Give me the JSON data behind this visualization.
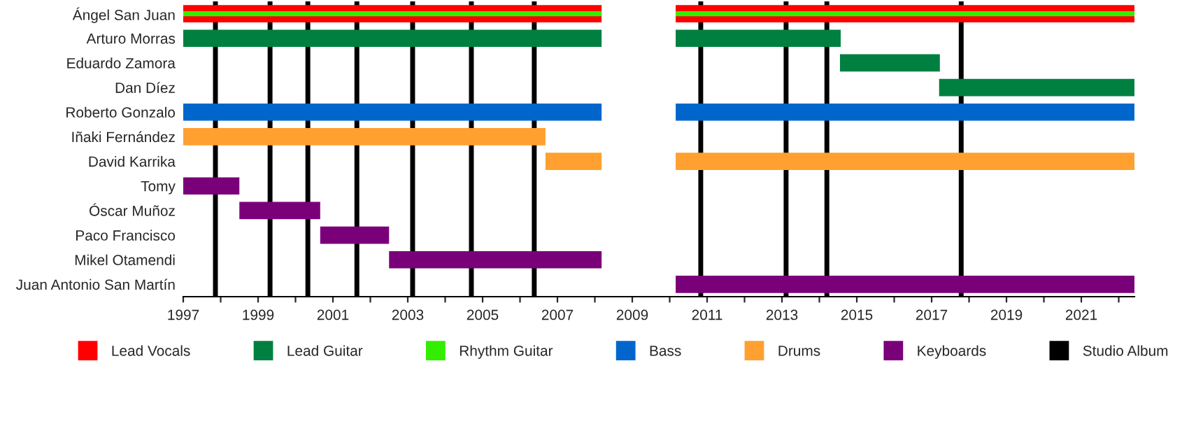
{
  "chart_data": {
    "type": "bar",
    "orientation": "horizontal",
    "legend": "bottom",
    "grid": false,
    "categories": [
      "Ángel San Juan",
      "Arturo Morras",
      "Eduardo Zamora",
      "Dan Díez",
      "Roberto Gonzalo",
      "Iñaki Fernández",
      "David Karrika",
      "Tomy",
      "Óscar Muñoz",
      "Paco Francisco",
      "Mikel Otamendi",
      "Juan Antonio San Martín"
    ],
    "xlim": [
      1997,
      2022.42
    ],
    "xticks": [
      1997,
      {
        "value": 1998,
        "label": null
      },
      1999,
      {
        "value": 2000,
        "label": null
      },
      2001,
      {
        "value": 2002,
        "label": null
      },
      2003,
      {
        "value": 2004,
        "label": null
      },
      2005,
      {
        "value": 2006,
        "label": null
      },
      2007,
      {
        "value": 2008,
        "label": null
      },
      2009,
      {
        "value": 2010,
        "label": null
      },
      2011,
      {
        "value": 2012,
        "label": null
      },
      2013,
      {
        "value": 2014,
        "label": null
      },
      2015,
      {
        "value": 2016,
        "label": null
      },
      2017,
      {
        "value": 2018,
        "label": null
      },
      2019,
      {
        "value": 2020,
        "label": null
      },
      2021,
      {
        "value": 2022,
        "label": null
      }
    ],
    "series": [
      {
        "name": "Lead Vocals",
        "color": "#ff0000",
        "base": [
          1997,
          null,
          null,
          null,
          null,
          null,
          null,
          null,
          null,
          null,
          null,
          null
        ],
        "values": [
          11.18,
          null,
          null,
          null,
          null,
          null,
          null,
          null,
          null,
          null,
          null,
          null
        ]
      },
      {
        "name": "Lead Guitar",
        "color": "#008040",
        "base": [
          null,
          1997,
          null,
          null,
          null,
          null,
          null,
          null,
          null,
          null,
          null,
          null
        ],
        "values": [
          null,
          11.18,
          null,
          null,
          null,
          null,
          null,
          null,
          null,
          null,
          null,
          null
        ]
      },
      {
        "name": "Rhythm Guitar",
        "color": "#33ee00",
        "base": [
          1997,
          null,
          null,
          null,
          null,
          null,
          null,
          null,
          null,
          null,
          null,
          null
        ],
        "values": [
          11.18,
          null,
          null,
          null,
          null,
          null,
          null,
          null,
          null,
          null,
          null,
          null
        ]
      },
      {
        "name": "Bass",
        "color": "#0066cc",
        "base": [
          null,
          null,
          null,
          null,
          1997,
          null,
          null,
          null,
          null,
          null,
          null,
          null
        ],
        "values": [
          null,
          null,
          null,
          null,
          11.18,
          null,
          null,
          null,
          null,
          null,
          null,
          null
        ]
      },
      {
        "name": "Drums",
        "color": "#ffa030",
        "base": [
          null,
          null,
          null,
          null,
          null,
          1997,
          2006.68,
          null,
          null,
          null,
          null,
          null
        ],
        "values": [
          null,
          null,
          null,
          null,
          null,
          9.68,
          1.5,
          null,
          null,
          null,
          null,
          null
        ]
      },
      {
        "name": "Keyboards",
        "color": "#7a007a",
        "base": [
          null,
          null,
          null,
          null,
          null,
          null,
          null,
          1997,
          1998.5,
          2000.66,
          2002.5,
          null
        ],
        "values": [
          null,
          null,
          null,
          null,
          null,
          null,
          null,
          1.5,
          2.16,
          1.84,
          5.68,
          null
        ]
      },
      {
        "color": "#ff0000",
        "base": [
          2010.16,
          null,
          null,
          null,
          null,
          null,
          null,
          null,
          null,
          null,
          null,
          null
        ],
        "values": [
          12.26,
          null,
          null,
          null,
          null,
          null,
          null,
          null,
          null,
          null,
          null,
          null
        ]
      },
      {
        "color": "#008040",
        "base": [
          null,
          2010.16,
          2014.55,
          2017.2,
          null,
          null,
          null,
          null,
          null,
          null,
          null,
          null
        ],
        "values": [
          null,
          4.41,
          2.67,
          5.22,
          null,
          null,
          null,
          null,
          null,
          null,
          null,
          null
        ]
      },
      {
        "color": "#33ee00",
        "base": [
          2010.16,
          null,
          null,
          null,
          null,
          null,
          null,
          null,
          null,
          null,
          null,
          null
        ],
        "values": [
          12.26,
          null,
          null,
          null,
          null,
          null,
          null,
          null,
          null,
          null,
          null,
          null
        ]
      },
      {
        "color": "#0066cc",
        "base": [
          null,
          null,
          null,
          null,
          2010.16,
          null,
          null,
          null,
          null,
          null,
          null,
          null
        ],
        "values": [
          null,
          null,
          null,
          null,
          12.26,
          null,
          null,
          null,
          null,
          null,
          null,
          null
        ]
      },
      {
        "color": "#ffa030",
        "base": [
          null,
          null,
          null,
          null,
          null,
          null,
          2010.16,
          null,
          null,
          null,
          null,
          null
        ],
        "values": [
          null,
          null,
          null,
          null,
          null,
          null,
          12.26,
          null,
          null,
          null,
          null,
          null
        ]
      },
      {
        "color": "#7a007a",
        "base": [
          null,
          null,
          null,
          null,
          null,
          null,
          null,
          null,
          null,
          null,
          null,
          2010.16
        ],
        "values": [
          null,
          null,
          null,
          null,
          null,
          null,
          null,
          null,
          null,
          null,
          null,
          12.26
        ]
      }
    ],
    "ref_lines": [
      {
        "axis": "x",
        "value": 1997.86,
        "label": "Studio Album",
        "color": "#000000"
      },
      {
        "axis": "x",
        "value": 1999.32,
        "color": "#000000"
      },
      {
        "axis": "x",
        "value": 2000.33,
        "color": "#000000"
      },
      {
        "axis": "x",
        "value": 2001.64,
        "color": "#000000"
      },
      {
        "axis": "x",
        "value": 2003.13,
        "color": "#000000"
      },
      {
        "axis": "x",
        "value": 2004.7,
        "color": "#000000"
      },
      {
        "axis": "x",
        "value": 2006.38,
        "color": "#000000"
      },
      {
        "axis": "x",
        "value": 2010.83,
        "color": "#000000"
      },
      {
        "axis": "x",
        "value": 2013.11,
        "color": "#000000"
      },
      {
        "axis": "x",
        "value": 2014.2,
        "color": "#000000"
      },
      {
        "axis": "x",
        "value": 2017.79,
        "color": "#000000"
      }
    ]
  }
}
